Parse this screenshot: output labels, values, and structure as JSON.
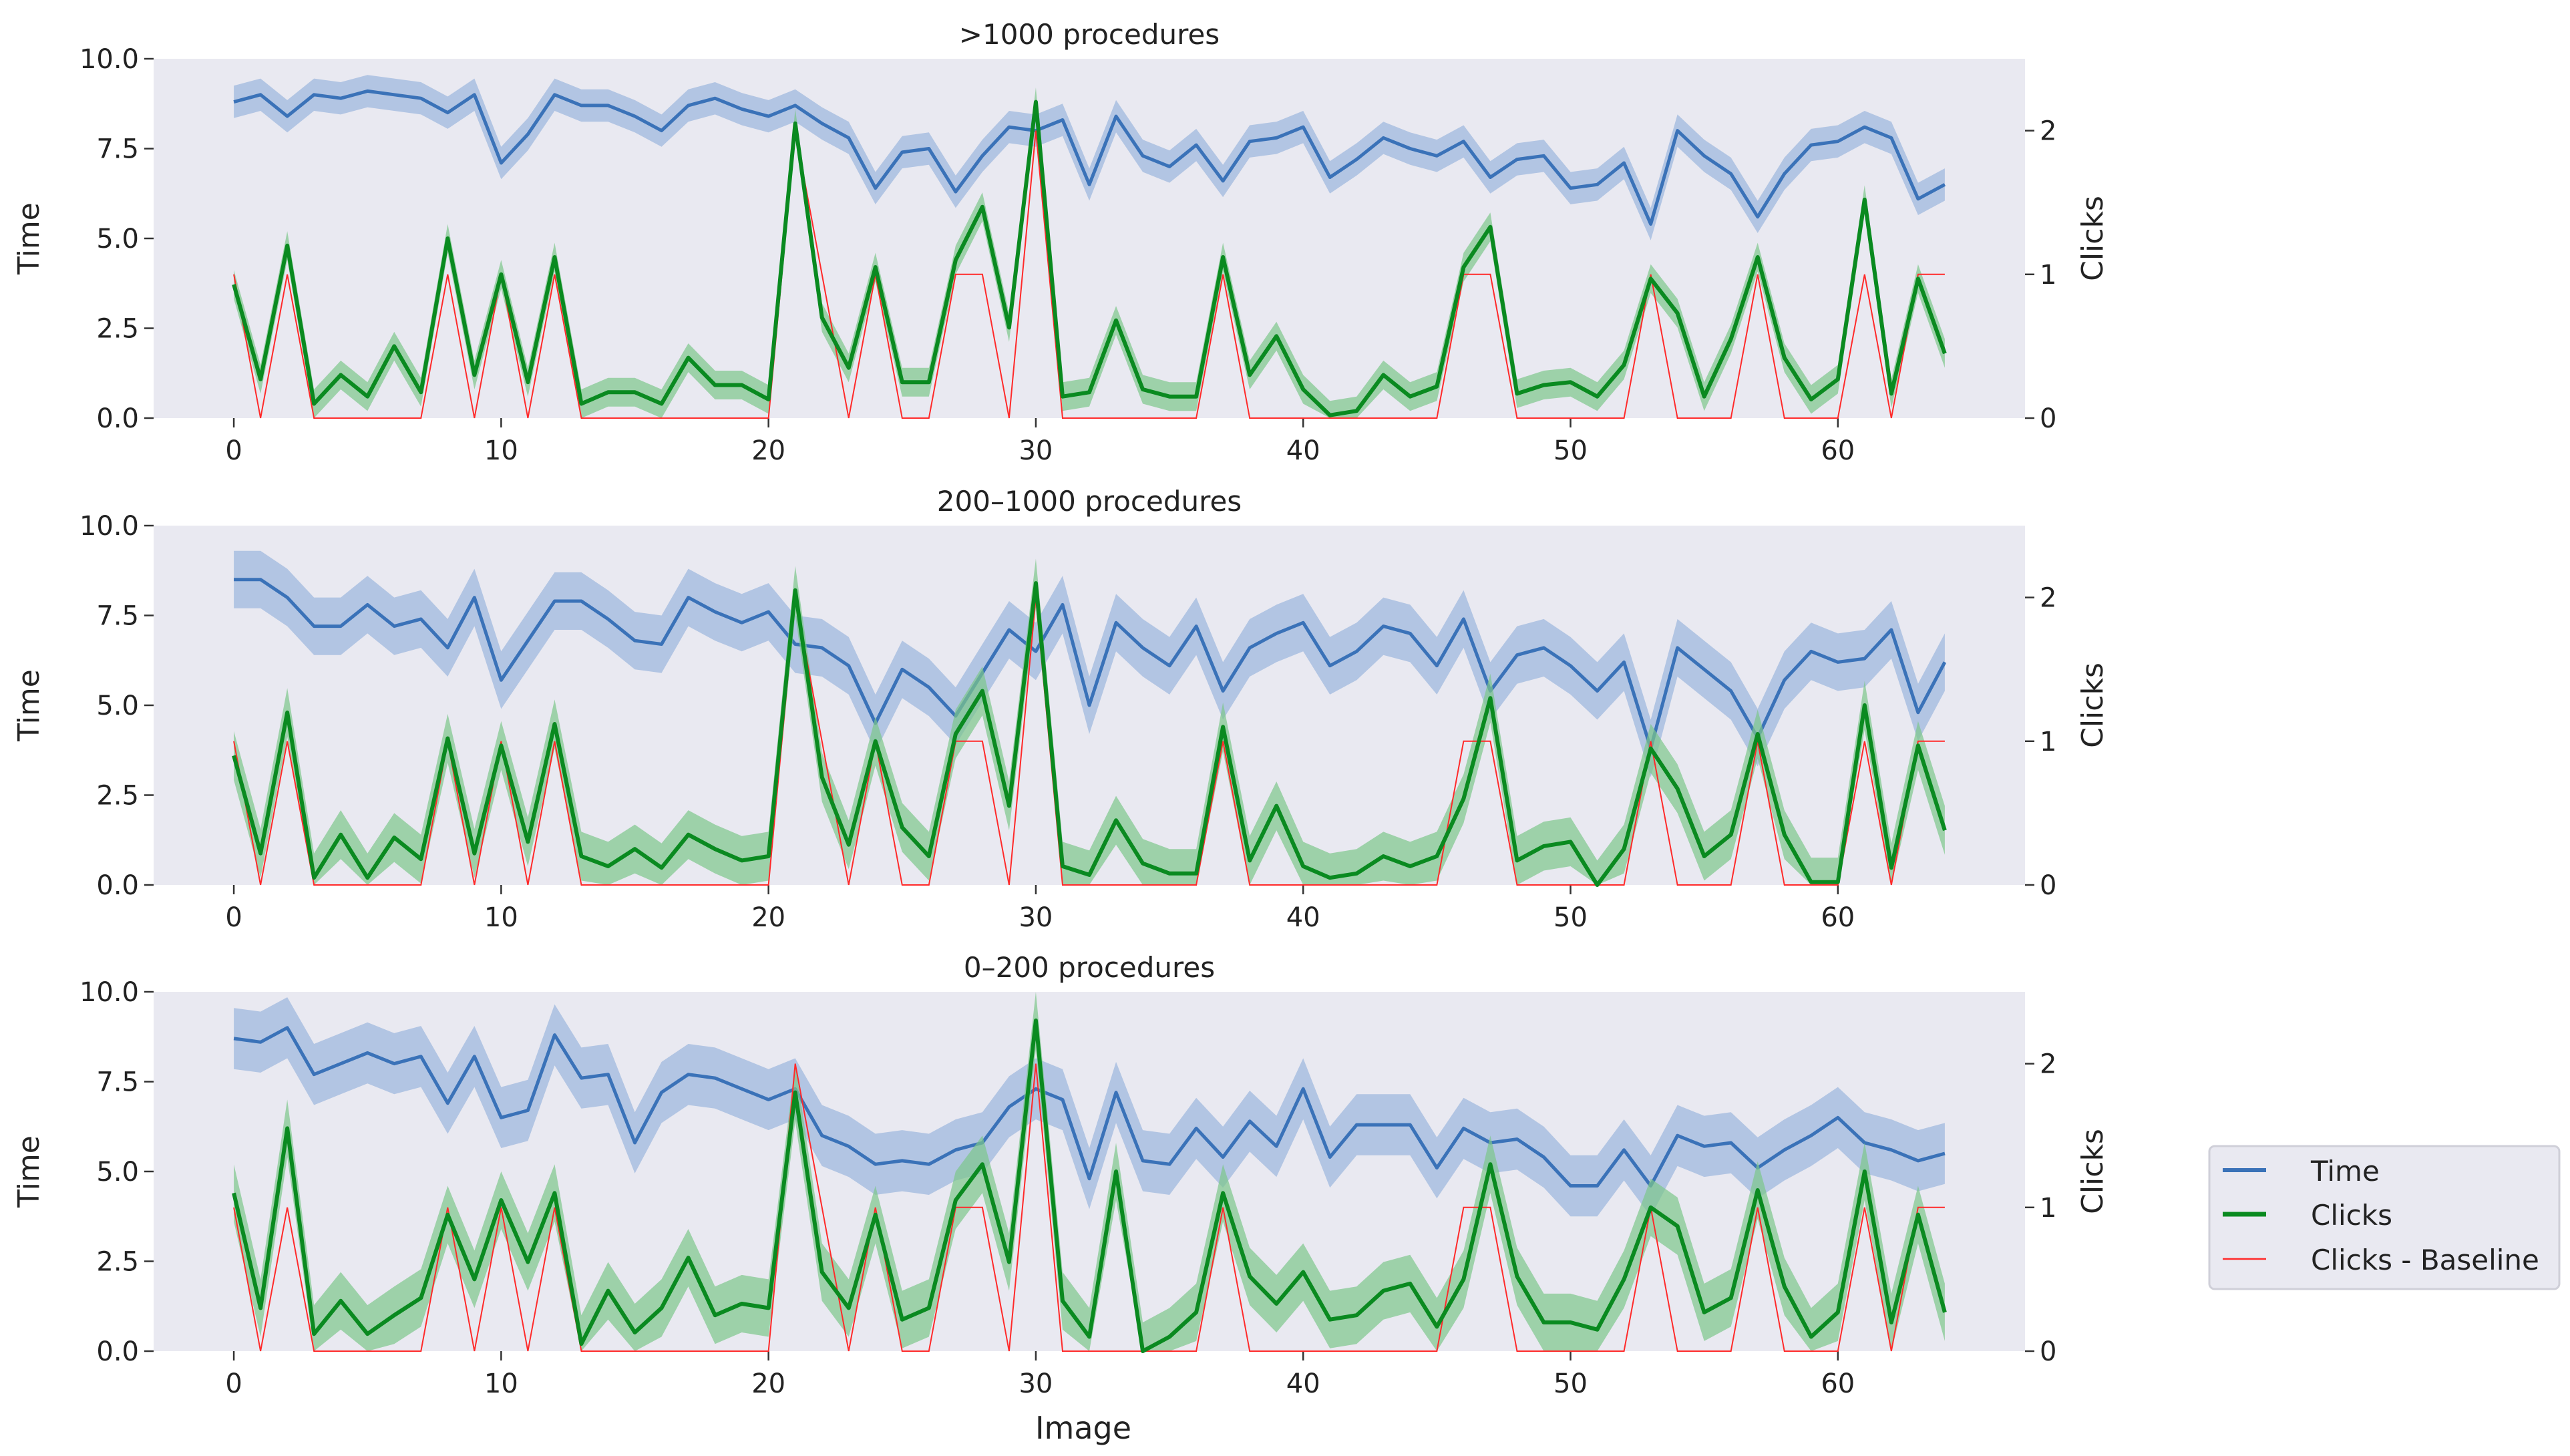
{
  "colors": {
    "time": "#3a72b8",
    "time_band": "#9fb8dd",
    "clicks": "#0a8a20",
    "clicks_band": "#7cc68a",
    "baseline": "#ff2a2a",
    "plot_bg": "#e9e9f1"
  },
  "legend": {
    "items": [
      {
        "label": "Time",
        "color": "#3a72b8"
      },
      {
        "label": "Clicks",
        "color": "#0a8a20"
      },
      {
        "label": "Clicks - Baseline",
        "color": "#ff2a2a"
      }
    ]
  },
  "chart_data": {
    "type": "line",
    "xlabel": "Image",
    "x": [
      0,
      1,
      2,
      3,
      4,
      5,
      6,
      7,
      8,
      9,
      10,
      11,
      12,
      13,
      14,
      15,
      16,
      17,
      18,
      19,
      20,
      21,
      22,
      23,
      24,
      25,
      26,
      27,
      28,
      29,
      30,
      31,
      32,
      33,
      34,
      35,
      36,
      37,
      38,
      39,
      40,
      41,
      42,
      43,
      44,
      45,
      46,
      47,
      48,
      49,
      50,
      51,
      52,
      53,
      54,
      55,
      56,
      57,
      58,
      59,
      60,
      61,
      62,
      63,
      64
    ],
    "xlim": [
      -3,
      67
    ],
    "xticks": [
      0,
      10,
      20,
      30,
      40,
      50,
      60
    ],
    "ylabel_left": "Time",
    "ylabel_right": "Clicks",
    "yticks_left": [
      "0.0",
      "2.5",
      "5.0",
      "7.5",
      "10.0"
    ],
    "yticks_right": [
      "0",
      "1",
      "2"
    ],
    "ylim_left": [
      0,
      10
    ],
    "ylim_right": [
      0,
      2.5
    ],
    "baseline": [
      1,
      0,
      1,
      0,
      0,
      0,
      0,
      0,
      1,
      0,
      1,
      0,
      1,
      0,
      0,
      0,
      0,
      0,
      0,
      0,
      0,
      2,
      1,
      0,
      1,
      0,
      0,
      1,
      1,
      0,
      2,
      0,
      0,
      0,
      0,
      0,
      0,
      1,
      0,
      0,
      0,
      0,
      0,
      0,
      0,
      0,
      1,
      1,
      0,
      0,
      0,
      0,
      0,
      1,
      0,
      0,
      0,
      1,
      0,
      0,
      0,
      1,
      0,
      1,
      1
    ],
    "panels": [
      {
        "title": ">1000 procedures",
        "time": [
          8.8,
          9.0,
          8.4,
          9.0,
          8.9,
          9.1,
          9.0,
          8.9,
          8.5,
          9.0,
          7.1,
          7.9,
          9.0,
          8.7,
          8.7,
          8.4,
          8.0,
          8.7,
          8.9,
          8.6,
          8.4,
          8.7,
          8.2,
          7.8,
          6.4,
          7.4,
          7.5,
          6.3,
          7.3,
          8.1,
          8.0,
          8.3,
          6.5,
          8.4,
          7.3,
          7.0,
          7.6,
          6.6,
          7.7,
          7.8,
          8.1,
          6.7,
          7.2,
          7.8,
          7.5,
          7.3,
          7.7,
          6.7,
          7.2,
          7.3,
          6.4,
          6.5,
          7.1,
          5.4,
          8.0,
          7.3,
          6.8,
          5.6,
          6.8,
          7.6,
          7.7,
          8.1,
          7.8,
          6.1,
          6.5
        ],
        "time_band": 0.45,
        "clicks": [
          0.93,
          0.27,
          1.2,
          0.1,
          0.3,
          0.15,
          0.5,
          0.18,
          1.25,
          0.3,
          1.0,
          0.25,
          1.12,
          0.1,
          0.18,
          0.18,
          0.1,
          0.42,
          0.23,
          0.23,
          0.13,
          2.05,
          0.7,
          0.35,
          1.05,
          0.25,
          0.25,
          1.1,
          1.47,
          0.63,
          2.2,
          0.15,
          0.18,
          0.68,
          0.2,
          0.15,
          0.15,
          1.12,
          0.3,
          0.57,
          0.2,
          0.02,
          0.05,
          0.3,
          0.15,
          0.22,
          1.05,
          1.33,
          0.17,
          0.23,
          0.25,
          0.15,
          0.37,
          0.97,
          0.73,
          0.15,
          0.55,
          1.12,
          0.42,
          0.13,
          0.27,
          1.52,
          0.17,
          0.97,
          0.45
        ],
        "clicks_band": 0.1
      },
      {
        "title": "200–1000 procedures",
        "time": [
          8.5,
          8.5,
          8.0,
          7.2,
          7.2,
          7.8,
          7.2,
          7.4,
          6.6,
          8.0,
          5.7,
          6.8,
          7.9,
          7.9,
          7.4,
          6.8,
          6.7,
          8.0,
          7.6,
          7.3,
          7.6,
          6.7,
          6.6,
          6.1,
          4.5,
          6.0,
          5.5,
          4.7,
          5.9,
          7.1,
          6.5,
          7.8,
          5.0,
          7.3,
          6.6,
          6.1,
          7.2,
          5.4,
          6.6,
          7.0,
          7.3,
          6.1,
          6.5,
          7.2,
          7.0,
          6.1,
          7.4,
          5.4,
          6.4,
          6.6,
          6.1,
          5.4,
          6.2,
          3.8,
          6.6,
          6.0,
          5.4,
          4.1,
          5.7,
          6.5,
          6.2,
          6.3,
          7.1,
          4.8,
          6.2
        ],
        "time_band": 0.8,
        "clicks": [
          0.9,
          0.22,
          1.2,
          0.05,
          0.35,
          0.05,
          0.33,
          0.18,
          1.02,
          0.22,
          0.97,
          0.3,
          1.12,
          0.2,
          0.13,
          0.25,
          0.12,
          0.35,
          0.25,
          0.17,
          0.2,
          2.05,
          0.75,
          0.28,
          1.0,
          0.4,
          0.2,
          1.05,
          1.35,
          0.55,
          2.1,
          0.13,
          0.07,
          0.45,
          0.15,
          0.08,
          0.08,
          1.1,
          0.17,
          0.55,
          0.13,
          0.05,
          0.08,
          0.2,
          0.13,
          0.2,
          0.6,
          1.3,
          0.17,
          0.27,
          0.3,
          0.0,
          0.25,
          0.95,
          0.67,
          0.2,
          0.35,
          1.05,
          0.35,
          0.02,
          0.02,
          1.25,
          0.12,
          0.97,
          0.38
        ],
        "clicks_band": 0.17
      },
      {
        "title": "0–200 procedures",
        "time": [
          8.7,
          8.6,
          9.0,
          7.7,
          8.0,
          8.3,
          8.0,
          8.2,
          6.9,
          8.2,
          6.5,
          6.7,
          8.8,
          7.6,
          7.7,
          5.8,
          7.2,
          7.7,
          7.6,
          7.3,
          7.0,
          7.3,
          6.0,
          5.7,
          5.2,
          5.3,
          5.2,
          5.6,
          5.8,
          6.8,
          7.3,
          7.0,
          4.8,
          7.2,
          5.3,
          5.2,
          6.2,
          5.4,
          6.4,
          5.7,
          7.3,
          5.4,
          6.3,
          6.3,
          6.3,
          5.1,
          6.2,
          5.8,
          5.9,
          5.4,
          4.6,
          4.6,
          5.6,
          4.6,
          6.0,
          5.7,
          5.8,
          5.1,
          5.6,
          6.0,
          6.5,
          5.8,
          5.6,
          5.3,
          5.5
        ],
        "time_band": 0.85,
        "clicks": [
          1.1,
          0.3,
          1.55,
          0.12,
          0.35,
          0.12,
          0.25,
          0.37,
          0.95,
          0.5,
          1.05,
          0.62,
          1.1,
          0.05,
          0.42,
          0.13,
          0.3,
          0.65,
          0.25,
          0.33,
          0.3,
          1.8,
          0.55,
          0.3,
          0.95,
          0.22,
          0.3,
          1.05,
          1.3,
          0.62,
          2.3,
          0.35,
          0.1,
          1.25,
          0.0,
          0.1,
          0.27,
          1.1,
          0.52,
          0.33,
          0.55,
          0.22,
          0.25,
          0.42,
          0.47,
          0.17,
          0.5,
          1.3,
          0.52,
          0.2,
          0.2,
          0.15,
          0.5,
          1.0,
          0.87,
          0.27,
          0.37,
          1.12,
          0.45,
          0.1,
          0.27,
          1.25,
          0.2,
          0.95,
          0.27
        ],
        "clicks_band": 0.2
      }
    ]
  }
}
